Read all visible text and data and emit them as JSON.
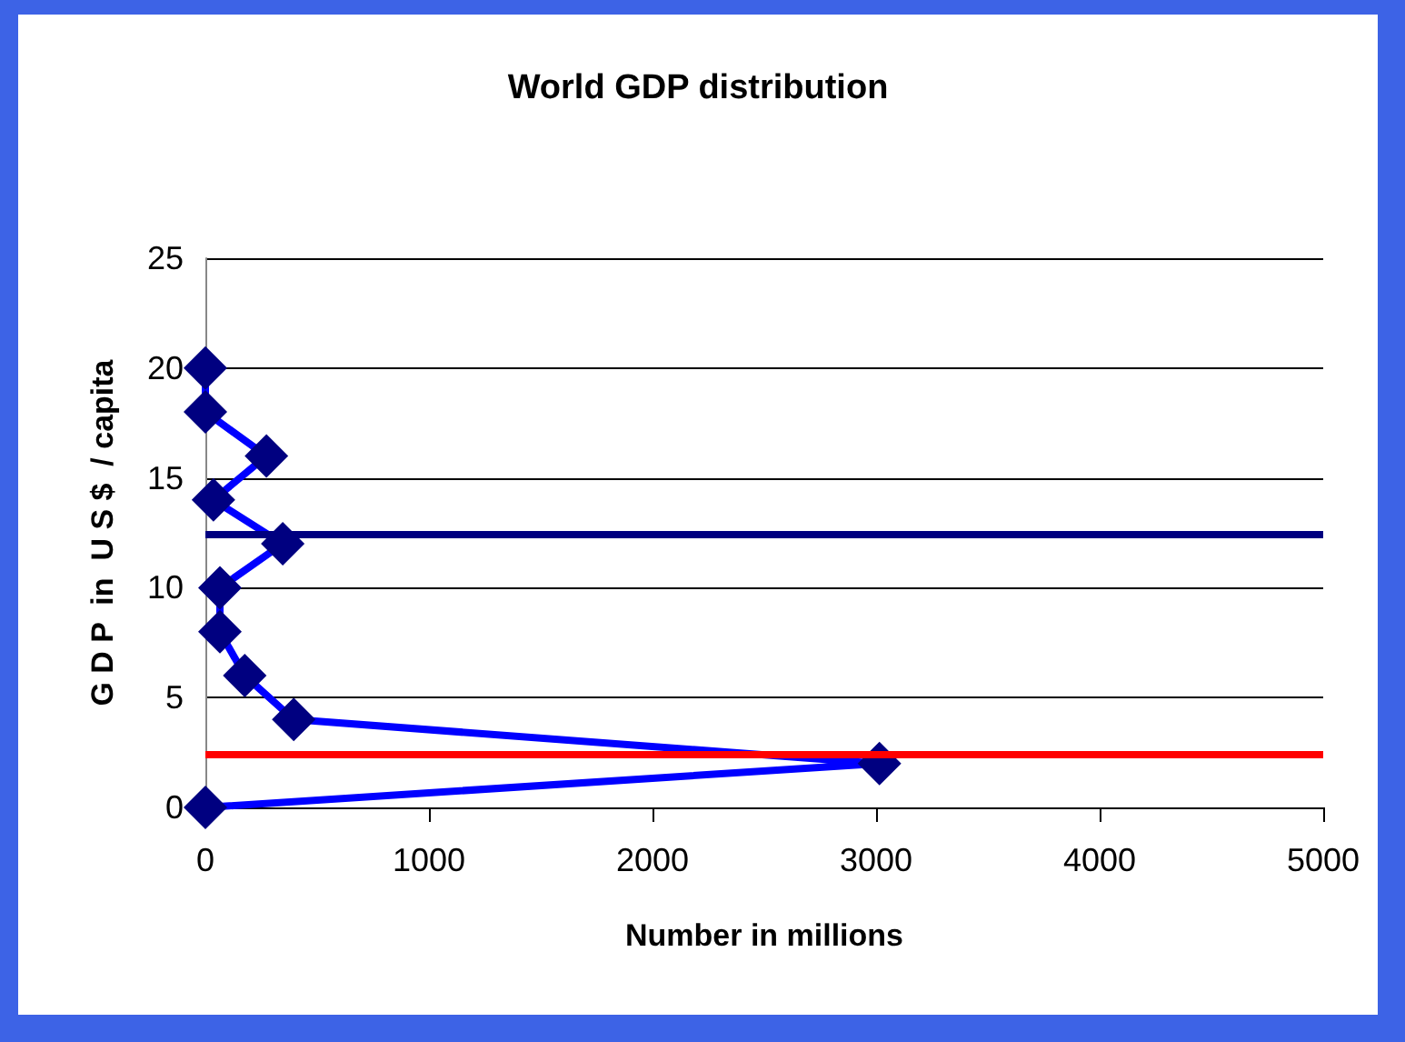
{
  "chart_data": {
    "type": "line",
    "title": "World GDP distribution",
    "xlabel": "Number in millions",
    "ylabel": "G D P  in  U S $  / capita",
    "x": [
      0,
      0,
      273,
      36,
      346,
      65,
      65,
      176,
      395,
      3015,
      0
    ],
    "series": [
      {
        "color": "#0000ff",
        "values": [
          20,
          18,
          16,
          14,
          12,
          10,
          8,
          6,
          4,
          2,
          0
        ]
      }
    ],
    "marker": "diamond",
    "xlim": [
      0,
      5000
    ],
    "xticks": [
      0,
      1000,
      2000,
      3000,
      4000,
      5000
    ],
    "ylim": [
      0,
      25
    ],
    "yticks": [
      0,
      5,
      10,
      15,
      20,
      25
    ],
    "grid": "y",
    "ref_lines": [
      {
        "axis": "y",
        "value": 12.4,
        "color": "#000080"
      },
      {
        "axis": "y",
        "value": 2.4,
        "color": "#ff0000"
      }
    ]
  }
}
